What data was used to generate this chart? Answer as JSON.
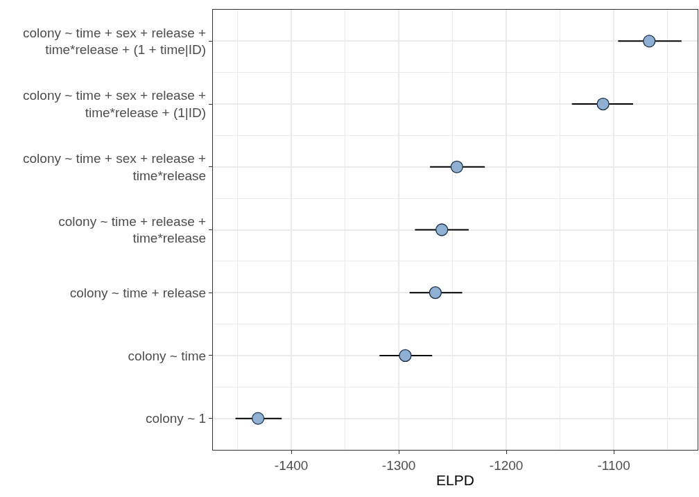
{
  "chart_data": {
    "type": "scatter",
    "xlabel": "ELPD",
    "categories": [
      "colony ~ time + sex + release +\ntime*release + (1 + time|ID)",
      "colony ~ time + sex + release +\ntime*release + (1|ID)",
      "colony ~ time + sex + release +\ntime*release",
      "colony ~ time + release +\ntime*release",
      "colony ~ time + release",
      "colony ~ time",
      "colony ~ 1"
    ],
    "orientation": "horizontal",
    "values": [
      -1067,
      -1110,
      -1246,
      -1260,
      -1266,
      -1294,
      -1431
    ],
    "errors": [
      [
        -1096,
        -1037
      ],
      [
        -1139,
        -1082
      ],
      [
        -1271,
        -1220
      ],
      [
        -1285,
        -1235
      ],
      [
        -1290,
        -1241
      ],
      [
        -1318,
        -1269
      ],
      [
        -1452,
        -1409
      ]
    ],
    "color": "#8fb0d3",
    "marker": "circle",
    "xlim": [
      -1473,
      -1022
    ],
    "xticks": [
      -1400,
      -1300,
      -1200,
      -1100
    ],
    "grid": true
  }
}
